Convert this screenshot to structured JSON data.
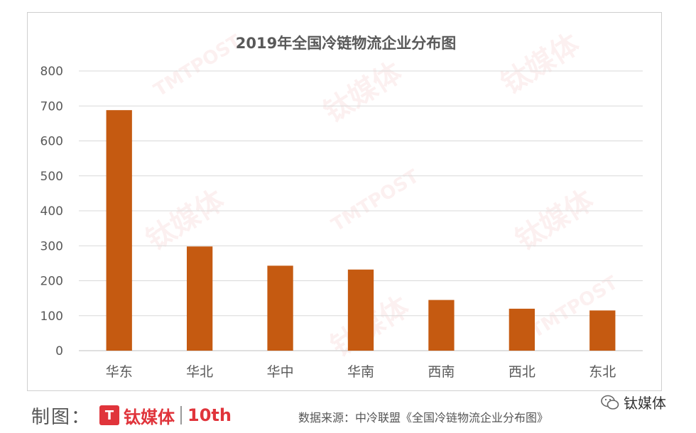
{
  "chart_data": {
    "type": "bar",
    "title": "2019年全国冷链物流企业分布图",
    "categories": [
      "华东",
      "华北",
      "华中",
      "华南",
      "西南",
      "西北",
      "东北"
    ],
    "values": [
      688,
      298,
      243,
      232,
      145,
      120,
      115
    ],
    "xlabel": "",
    "ylabel": "",
    "ylim": [
      0,
      800
    ],
    "yticks": [
      0,
      100,
      200,
      300,
      400,
      500,
      600,
      700,
      800
    ],
    "grid": true,
    "legend": "none",
    "bar_color": "#c55a11",
    "grid_color": "#d9d9d9"
  },
  "watermark": {
    "brand_cn": "钛媒体",
    "brand_en": "TMTPOST"
  },
  "footer": {
    "made_by_label": "制图：",
    "logo_mark": "T",
    "logo_text": "钛媒体",
    "logo_tenth": "10th",
    "source_text": "数据来源：中冷联盟《全国冷链物流企业分布图》",
    "wechat_text": "钛媒体"
  }
}
